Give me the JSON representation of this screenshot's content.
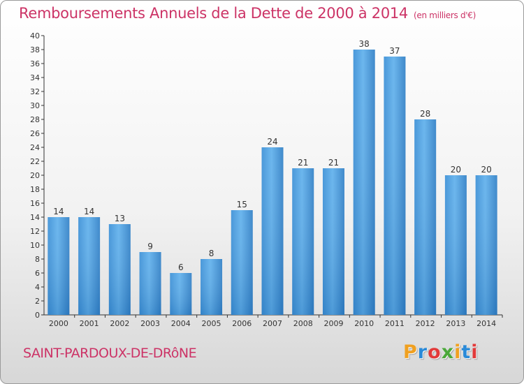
{
  "header": {
    "title": "Remboursements Annuels de la Dette de 2000 à 2014",
    "unit": "(en milliers d'€)"
  },
  "commune": "SAINT-PARDOUX-DE-DRôNE",
  "logo": {
    "letters": [
      "P",
      "r",
      "o",
      "x",
      "i",
      "t",
      "i"
    ],
    "colors": [
      "#f0a020",
      "#2a8ad8",
      "#e23a3a",
      "#4aa83a",
      "#f0a020",
      "#2a8ad8",
      "#e23a3a"
    ]
  },
  "chart_data": {
    "type": "bar",
    "categories": [
      "2000",
      "2001",
      "2002",
      "2003",
      "2004",
      "2005",
      "2006",
      "2007",
      "2008",
      "2009",
      "2010",
      "2011",
      "2012",
      "2013",
      "2014"
    ],
    "values": [
      14,
      14,
      13,
      9,
      6,
      8,
      15,
      24,
      21,
      21,
      38,
      37,
      28,
      20,
      20
    ],
    "ylim": [
      0,
      40
    ],
    "ytick_step": 2,
    "grid": false,
    "bar_color": "#4a9fe0"
  }
}
